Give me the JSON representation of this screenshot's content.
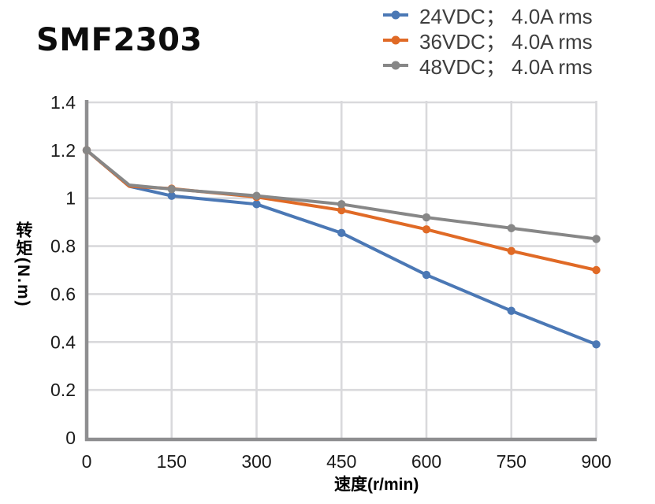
{
  "title": "SMF2303",
  "style": {
    "grid_color": "#D9D9DC",
    "axis_color": "#8E8E90",
    "tick_label_color": "#1b1b1b",
    "legend_text_color": "#3e3e3e",
    "background": "#ffffff"
  },
  "chart_data": {
    "type": "line",
    "title": "SMF2303",
    "xlabel": "速度(r/min)",
    "ylabel": "转矩(N.m)",
    "xlim": [
      0,
      900
    ],
    "ylim": [
      0,
      1.4
    ],
    "xticks": [
      0,
      150,
      300,
      450,
      600,
      750,
      900
    ],
    "yticks": [
      0,
      0.2,
      0.4,
      0.6,
      0.8,
      1,
      1.2,
      1.4
    ],
    "grid": true,
    "legend_position": "top-right",
    "x": [
      0,
      75,
      150,
      300,
      450,
      600,
      750,
      900
    ],
    "marker_x": [
      0,
      150,
      300,
      450,
      600,
      750,
      900
    ],
    "series": [
      {
        "id": "24vdc",
        "name": "24VDC； 4.0A rms",
        "color": "#4B78B5",
        "values": [
          1.2,
          1.05,
          1.01,
          0.975,
          0.855,
          0.68,
          0.53,
          0.39
        ]
      },
      {
        "id": "36vdc",
        "name": "36VDC； 4.0A rms",
        "color": "#E06A26",
        "values": [
          1.2,
          1.05,
          1.04,
          1.005,
          0.95,
          0.87,
          0.78,
          0.7
        ]
      },
      {
        "id": "48vdc",
        "name": "48VDC； 4.0A rms",
        "color": "#878787",
        "values": [
          1.2,
          1.055,
          1.038,
          1.01,
          0.975,
          0.92,
          0.875,
          0.83
        ]
      }
    ]
  }
}
